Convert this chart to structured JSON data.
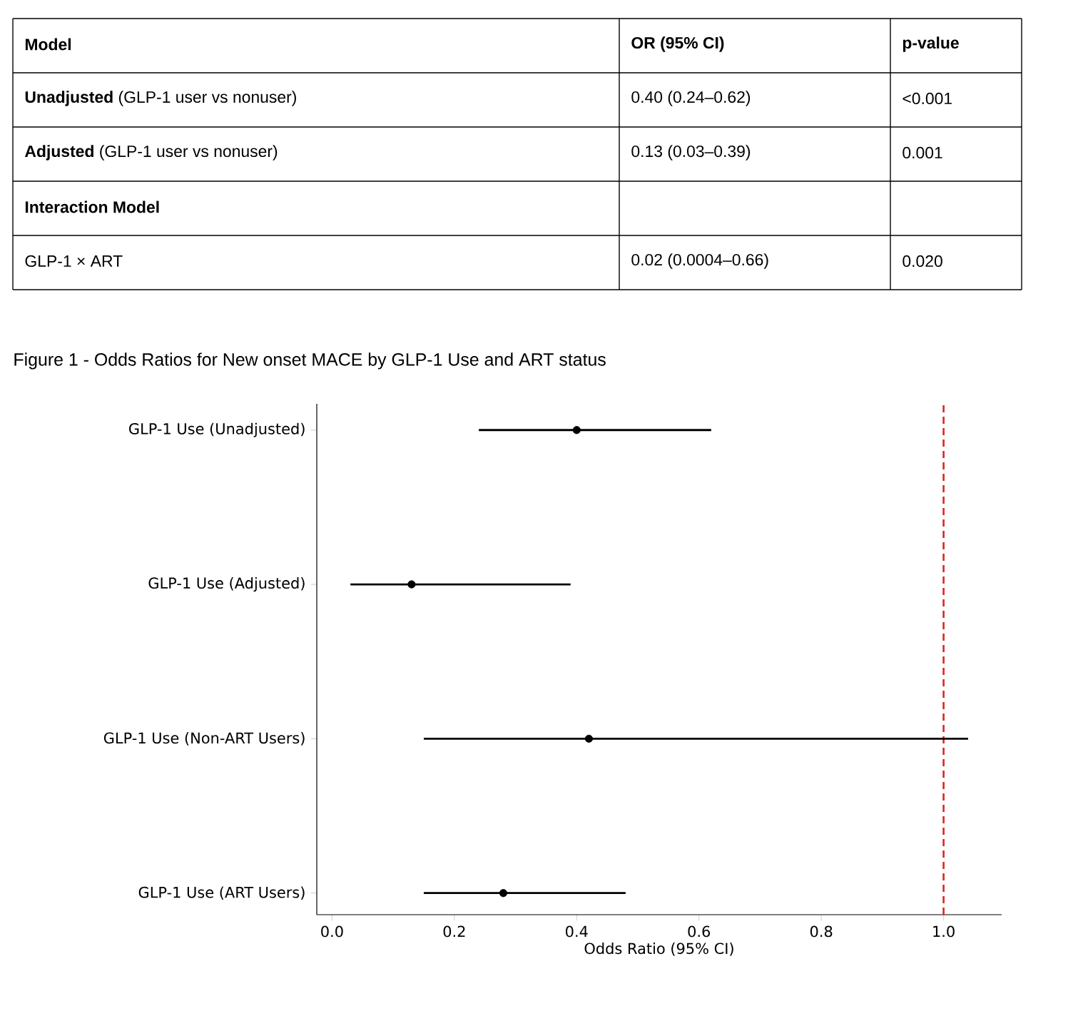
{
  "chart_data": [
    {
      "type": "other",
      "categories": [
        "Model",
        "OR (95% CI)",
        "p-value"
      ],
      "y_categories": [
        "**Unadjusted** (GLP-1 user vs nonuser)",
        "**Adjusted** (GLP-1 user vs nonuser)",
        "**Interaction Model**",
        "GLP-1 × ART"
      ],
      "cell_labels": [
        [
          "0.40 (0.24–0.62)",
          "<0.001"
        ],
        [
          "0.13 (0.03–0.39)",
          "0.001"
        ],
        [
          null,
          null
        ],
        [
          "0.02 (0.0004–0.66)",
          "0.020"
        ]
      ]
    },
    {
      "type": "scatter",
      "orientation": "horizontal",
      "title": "Figure 1 - Odds Ratios for New onset MACE by GLP-1 Use and ART status",
      "xlabel": "Odds Ratio (95% CI)",
      "categories": [
        "GLP-1 Use (Unadjusted)",
        "GLP-1 Use (Adjusted)",
        "GLP-1 Use (Non-ART Users)",
        "GLP-1 Use (ART Users)"
      ],
      "values": [
        0.4,
        0.13,
        0.42,
        0.28
      ],
      "errors": [
        [
          0.24,
          0.62
        ],
        [
          0.03,
          0.39
        ],
        [
          0.15,
          1.04
        ],
        [
          0.15,
          0.48
        ]
      ],
      "color": "#000000",
      "marker": "circle",
      "xlim": [
        -0.025,
        1.095
      ],
      "xticks": [
        {
          "value": 0,
          "label": "0.0"
        },
        {
          "value": 0.2,
          "label": "0.2"
        },
        {
          "value": 0.4,
          "label": "0.4"
        },
        {
          "value": 0.6,
          "label": "0.6"
        },
        {
          "value": 0.8,
          "label": "0.8"
        },
        {
          "value": 1.0,
          "label": "1.0"
        }
      ],
      "ref_lines": [
        {
          "axis": "x",
          "value": 1.0,
          "color": "#e3211c",
          "line_style": "dashed"
        }
      ]
    }
  ]
}
